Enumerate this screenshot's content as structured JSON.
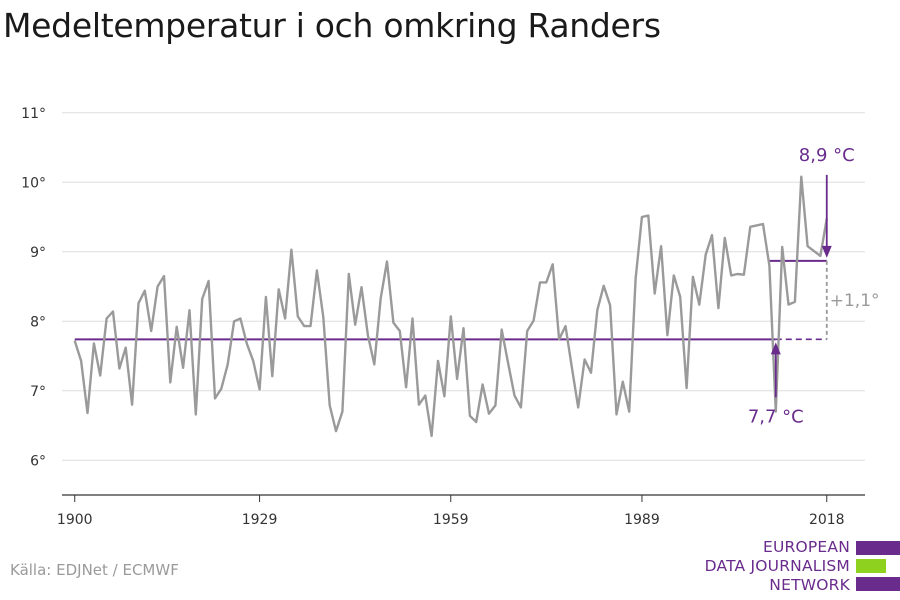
{
  "title": "Medeltemperatur i och omkring Randers",
  "source": "Källa: EDJNet / ECMWF",
  "logo": {
    "lines": [
      "EUROPEAN",
      "DATA JOURNALISM",
      "NETWORK"
    ],
    "colors": {
      "purple": "#6a2c8c",
      "green": "#8fd11f"
    }
  },
  "colors": {
    "series": "#9a9a9a",
    "mean": "#6a2c8c",
    "grid": "#dddddd",
    "axis": "#333333",
    "diff": "#9a9a9a"
  },
  "chart_data": {
    "type": "line",
    "x": [
      1900,
      1901,
      1902,
      1903,
      1904,
      1905,
      1906,
      1907,
      1908,
      1909,
      1910,
      1911,
      1912,
      1913,
      1914,
      1915,
      1916,
      1917,
      1918,
      1919,
      1920,
      1921,
      1922,
      1923,
      1924,
      1925,
      1926,
      1927,
      1928,
      1929,
      1930,
      1931,
      1932,
      1933,
      1934,
      1935,
      1936,
      1937,
      1938,
      1939,
      1940,
      1941,
      1942,
      1943,
      1944,
      1945,
      1946,
      1947,
      1948,
      1949,
      1950,
      1951,
      1952,
      1953,
      1954,
      1955,
      1956,
      1957,
      1958,
      1959,
      1960,
      1961,
      1962,
      1963,
      1964,
      1965,
      1966,
      1967,
      1968,
      1969,
      1970,
      1971,
      1972,
      1973,
      1974,
      1975,
      1976,
      1977,
      1978,
      1979,
      1980,
      1981,
      1982,
      1983,
      1984,
      1985,
      1986,
      1987,
      1988,
      1989,
      1990,
      1991,
      1992,
      1993,
      1994,
      1995,
      1996,
      1997,
      1998,
      1999,
      2000,
      2001,
      2002,
      2003,
      2004,
      2005,
      2006,
      2007,
      2008,
      2009,
      2010,
      2011,
      2012,
      2013,
      2014,
      2015,
      2016,
      2017,
      2018
    ],
    "values": [
      7.72,
      7.43,
      6.68,
      7.68,
      7.22,
      8.04,
      8.14,
      7.32,
      7.62,
      6.8,
      8.26,
      8.44,
      7.86,
      8.5,
      8.65,
      7.12,
      7.92,
      7.33,
      8.16,
      6.66,
      8.32,
      8.58,
      6.89,
      7.03,
      7.38,
      8.0,
      8.04,
      7.68,
      7.43,
      7.02,
      8.35,
      7.21,
      8.46,
      8.04,
      9.03,
      8.07,
      7.93,
      7.93,
      8.73,
      8.06,
      6.79,
      6.42,
      6.7,
      8.68,
      7.95,
      8.49,
      7.8,
      7.38,
      8.33,
      8.86,
      7.98,
      7.86,
      7.05,
      8.04,
      6.8,
      6.93,
      6.35,
      7.43,
      6.92,
      8.07,
      7.17,
      7.9,
      6.64,
      6.55,
      7.09,
      6.67,
      6.79,
      7.88,
      7.4,
      6.93,
      6.76,
      7.86,
      8.01,
      8.56,
      8.56,
      8.82,
      7.74,
      7.93,
      7.34,
      6.76,
      7.45,
      7.26,
      8.16,
      8.51,
      8.23,
      6.66,
      7.13,
      6.7,
      8.61,
      9.5,
      9.52,
      8.4,
      9.08,
      7.8,
      8.66,
      8.35,
      7.04,
      8.64,
      8.24,
      8.96,
      9.24,
      8.19,
      9.2,
      8.66,
      8.68,
      8.67,
      9.36,
      9.38,
      9.4,
      8.8,
      6.7,
      9.07,
      8.24,
      8.28,
      10.08,
      9.08,
      9.01,
      8.94,
      9.48
    ],
    "ylim": [
      5.5,
      11.4
    ],
    "xlim": [
      1898,
      2024
    ],
    "yticks": [
      6,
      7,
      8,
      9,
      10,
      11
    ],
    "ytick_labels": [
      "6°",
      "7°",
      "8°",
      "9°",
      "10°",
      "11°"
    ],
    "xticks": [
      1900,
      1929,
      1959,
      1989,
      2018
    ],
    "xtick_labels": [
      "1900",
      "1929",
      "1959",
      "1989",
      "2018"
    ],
    "grid": true,
    "reference_lines": [
      {
        "value": 7.74,
        "from": 1900,
        "to": 2010
      },
      {
        "value": 8.87,
        "from": 2009,
        "to": 2018
      }
    ],
    "annotations": {
      "baseline_label": "7,7 °C",
      "recent_label": "8,9 °C",
      "diff_label": "+1,1°"
    }
  }
}
